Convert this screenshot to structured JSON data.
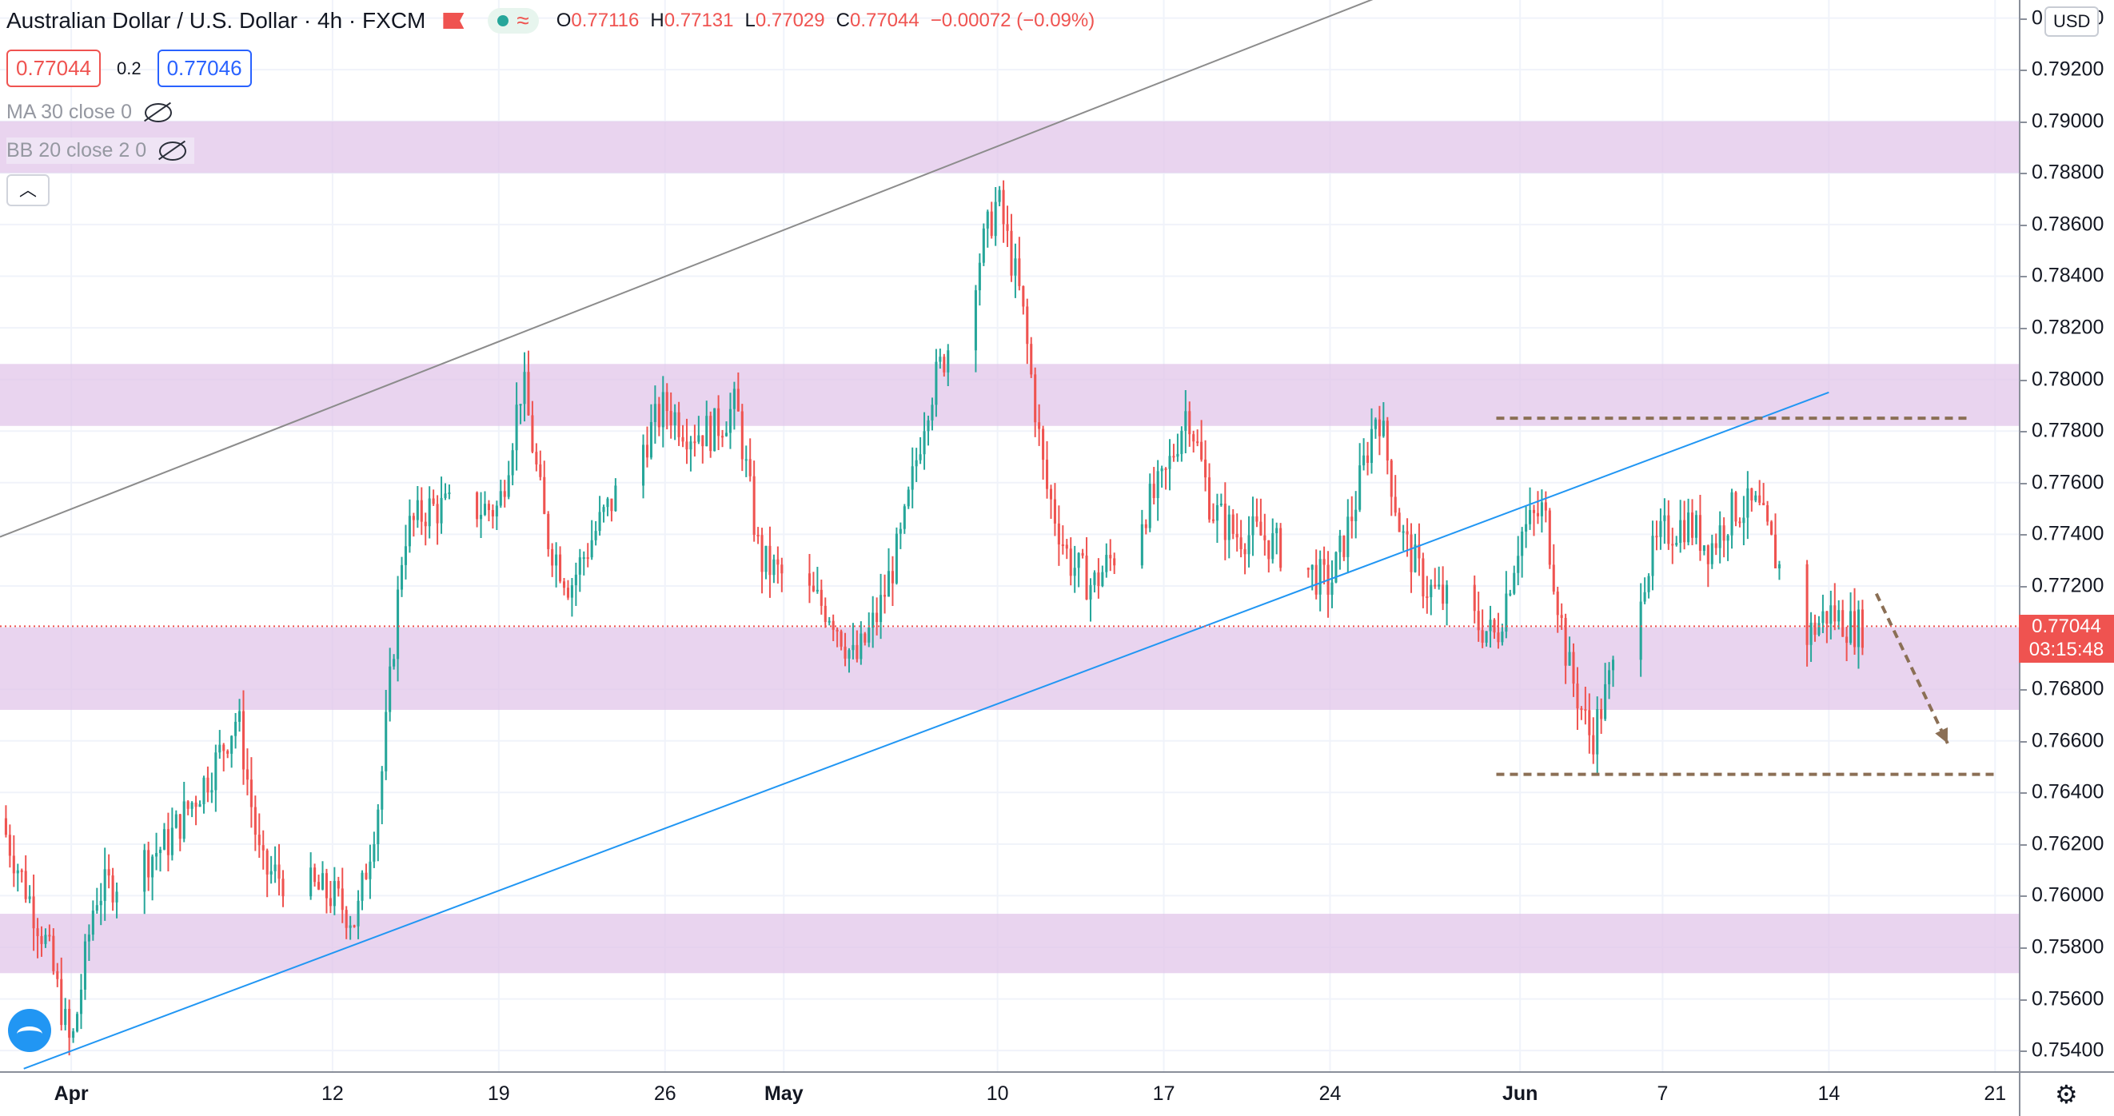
{
  "header": {
    "symbol": "Australian Dollar / U.S. Dollar · 4h · FXCM",
    "ohlc": {
      "o_label": "O",
      "o": "0.77116",
      "h_label": "H",
      "h": "0.77131",
      "l_label": "L",
      "l": "0.77029",
      "c_label": "C",
      "c": "0.77044",
      "change": "−0.00072 (−0.09%)"
    },
    "sell_price": "0.77044",
    "spread": "0.2",
    "buy_price": "0.77046",
    "indicators": [
      {
        "label": "MA 30 close 0",
        "icon": "eye-off-icon"
      },
      {
        "label": "BB 20 close 2 0",
        "icon": "eye-off-icon"
      }
    ],
    "collapse_icon": "chevron-up-icon"
  },
  "axis": {
    "currency": "USD",
    "price_ticks": [
      "0.79400",
      "0.79200",
      "0.79000",
      "0.78800",
      "0.78600",
      "0.78400",
      "0.78200",
      "0.78000",
      "0.77800",
      "0.77600",
      "0.77400",
      "0.77200",
      "0.76800",
      "0.76600",
      "0.76400",
      "0.76200",
      "0.76000",
      "0.75800",
      "0.75600",
      "0.75400"
    ],
    "time_ticks": [
      "Apr",
      "12",
      "19",
      "26",
      "May",
      "10",
      "17",
      "24",
      "Jun",
      "7",
      "14",
      "21"
    ],
    "current_price": "0.77044",
    "countdown": "03:15:48"
  },
  "colors": {
    "up": "#26a69a",
    "down": "#ef5350",
    "zone": "#e1c6ea",
    "trendline": "#2196f3",
    "channel": "#8c8c8c",
    "dashed": "#8b6f55"
  },
  "chart_data": {
    "type": "candlestick",
    "title": "Australian Dollar / U.S. Dollar",
    "timeframe": "4h",
    "x_range": [
      "2021-03-29",
      "2021-06-22"
    ],
    "y_range": [
      0.7532,
      0.7947
    ],
    "last_candle": "2021-06-15",
    "zones": [
      {
        "from": 0.788,
        "to": 0.79
      },
      {
        "from": 0.7782,
        "to": 0.7806
      },
      {
        "from": 0.7672,
        "to": 0.7704
      },
      {
        "from": 0.757,
        "to": 0.7593
      }
    ],
    "trendlines": [
      {
        "name": "ascending-support",
        "from": [
          "2021-03-30",
          0.7533
        ],
        "to": [
          "2021-06-14",
          0.7795
        ]
      },
      {
        "name": "channel-upper",
        "from": [
          "2021-03-29",
          0.7739
        ],
        "to": [
          "2021-05-26",
          0.7948
        ]
      }
    ],
    "levels": [
      {
        "price": 0.7785,
        "from": "2021-05-31",
        "to": "2021-06-20",
        "style": "dashed"
      },
      {
        "price": 0.7647,
        "from": "2021-05-31",
        "to": "2021-06-21",
        "style": "dashed"
      }
    ],
    "projection_arrow": {
      "from": [
        "2021-06-16",
        0.7717
      ],
      "to": [
        "2021-06-19",
        0.7659
      ]
    },
    "price_path": [
      [
        "2021-03-29",
        0.763
      ],
      [
        "2021-03-31",
        0.758
      ],
      [
        "2021-04-01",
        0.754
      ],
      [
        "2021-04-02",
        0.76
      ],
      [
        "2021-04-05",
        0.762
      ],
      [
        "2021-04-07",
        0.765
      ],
      [
        "2021-04-08",
        0.767
      ],
      [
        "2021-04-09",
        0.761
      ],
      [
        "2021-04-12",
        0.76
      ],
      [
        "2021-04-13",
        0.759
      ],
      [
        "2021-04-14",
        0.764
      ],
      [
        "2021-04-15",
        0.774
      ],
      [
        "2021-04-16",
        0.775
      ],
      [
        "2021-04-19",
        0.775
      ],
      [
        "2021-04-20",
        0.78
      ],
      [
        "2021-04-21",
        0.774
      ],
      [
        "2021-04-22",
        0.772
      ],
      [
        "2021-04-23",
        0.774
      ],
      [
        "2021-04-26",
        0.779
      ],
      [
        "2021-04-27",
        0.778
      ],
      [
        "2021-04-28",
        0.778
      ],
      [
        "2021-04-29",
        0.779
      ],
      [
        "2021-04-30",
        0.773
      ],
      [
        "2021-05-03",
        0.771
      ],
      [
        "2021-05-04",
        0.769
      ],
      [
        "2021-05-05",
        0.771
      ],
      [
        "2021-05-06",
        0.774
      ],
      [
        "2021-05-07",
        0.779
      ],
      [
        "2021-05-09",
        0.784
      ],
      [
        "2021-05-10",
        0.787
      ],
      [
        "2021-05-11",
        0.783
      ],
      [
        "2021-05-12",
        0.776
      ],
      [
        "2021-05-13",
        0.773
      ],
      [
        "2021-05-14",
        0.772
      ],
      [
        "2021-05-17",
        0.776
      ],
      [
        "2021-05-18",
        0.779
      ],
      [
        "2021-05-19",
        0.775
      ],
      [
        "2021-05-20",
        0.774
      ],
      [
        "2021-05-21",
        0.774
      ],
      [
        "2021-05-24",
        0.772
      ],
      [
        "2021-05-25",
        0.775
      ],
      [
        "2021-05-26",
        0.779
      ],
      [
        "2021-05-27",
        0.774
      ],
      [
        "2021-05-28",
        0.772
      ],
      [
        "2021-05-31",
        0.77
      ],
      [
        "2021-06-01",
        0.774
      ],
      [
        "2021-06-02",
        0.775
      ],
      [
        "2021-06-03",
        0.769
      ],
      [
        "2021-06-04",
        0.766
      ],
      [
        "2021-06-06",
        0.772
      ],
      [
        "2021-06-07",
        0.774
      ],
      [
        "2021-06-08",
        0.7745
      ],
      [
        "2021-06-09",
        0.7735
      ],
      [
        "2021-06-10",
        0.775
      ],
      [
        "2021-06-11",
        0.775
      ],
      [
        "2021-06-13",
        0.77
      ],
      [
        "2021-06-14",
        0.771
      ],
      [
        "2021-06-15",
        0.7704
      ]
    ]
  }
}
